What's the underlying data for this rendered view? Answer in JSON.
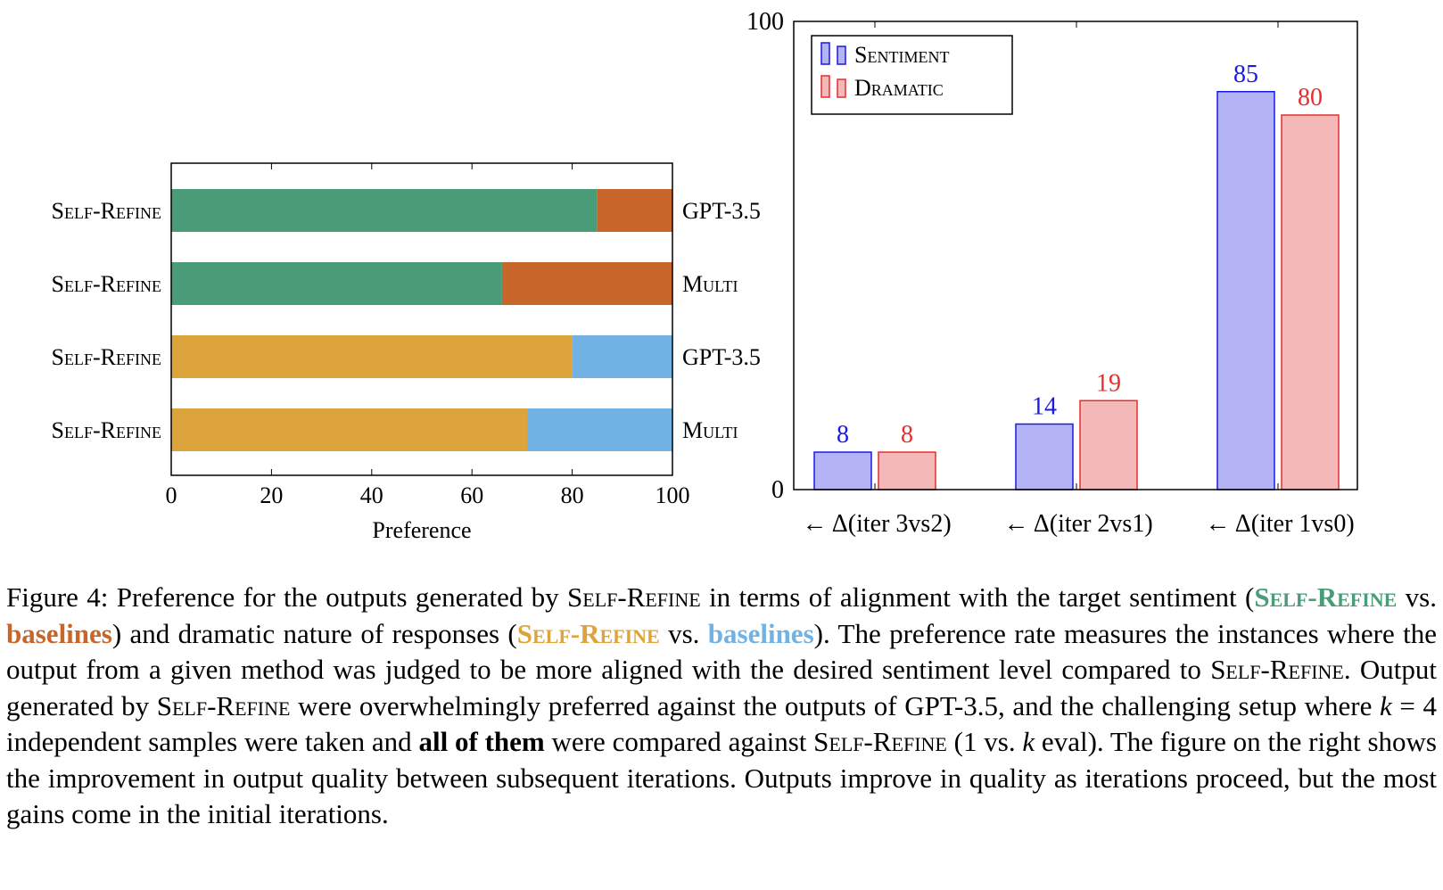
{
  "chart_data": [
    {
      "type": "bar",
      "orientation": "horizontal",
      "stacked": true,
      "xlabel": "Preference",
      "xlim": [
        0,
        100
      ],
      "xticks": [
        "0",
        "20",
        "40",
        "60",
        "80",
        "100"
      ],
      "rows": [
        {
          "left_label": "Self-Refine",
          "right_label": "GPT-3.5",
          "value": 85,
          "color_main": "#4a9c78",
          "color_rest": "#c8652a"
        },
        {
          "left_label": "Self-Refine",
          "right_label": "Multi",
          "value": 66,
          "color_main": "#4a9c78",
          "color_rest": "#c8652a"
        },
        {
          "left_label": "Self-Refine",
          "right_label": "GPT-3.5",
          "value": 80,
          "color_main": "#dca43a",
          "color_rest": "#71b2e4"
        },
        {
          "left_label": "Self-Refine",
          "right_label": "Multi",
          "value": 71,
          "color_main": "#dca43a",
          "color_rest": "#71b2e4"
        }
      ],
      "grid": false
    },
    {
      "type": "bar",
      "orientation": "vertical",
      "ylim": [
        0,
        100
      ],
      "yticks": [
        "0",
        "100"
      ],
      "categories": [
        "← Δ(iter 3vs2)",
        "← Δ(iter 2vs1)",
        "← Δ(iter 1vs0)"
      ],
      "series": [
        {
          "name": "Sentiment",
          "values": [
            8,
            14,
            85
          ],
          "labels": [
            "8",
            "14",
            "85"
          ],
          "fill": "#b3b3f5",
          "stroke": "#1a1ae6",
          "label_color": "#1a1ae6"
        },
        {
          "name": "Dramatic",
          "values": [
            8,
            19,
            80
          ],
          "labels": [
            "8",
            "19",
            "80"
          ],
          "fill": "#f5b8b8",
          "stroke": "#e62e2e",
          "label_color": "#e62e2e"
        }
      ],
      "legend_position": "top-left",
      "grid": false
    }
  ],
  "caption": {
    "lead": "Figure 4:",
    "t1": " Preference for the outputs generated by ",
    "method": "Self-Refine",
    "t2": " in terms of alignment with the target sentiment (",
    "m_green": "Self-Refine",
    "t3": " vs. ",
    "b_orange": "baselines",
    "t4": ") and dramatic nature of responses (",
    "m_gold": "Self-Refine",
    "t5": " vs. ",
    "b_blue": "baselines",
    "t6": "). The preference rate measures the instances where the output from a given method was judged to be more aligned with the desired sentiment level compared to ",
    "m3": "Self-Refine",
    "t7": ". Output generated by ",
    "m4": "Self-Refine",
    "t8": " were overwhelmingly preferred against the outputs of GPT-3.5, and the challenging setup where ",
    "k1": "k",
    "t9": " = 4 independent samples were taken and ",
    "bold1": "all of them",
    "t10": " were compared against ",
    "m5": "Self-Refine",
    "t11": " (1 vs. ",
    "k2": "k",
    "t12": " eval). The figure on the right shows the improvement in output quality between subsequent iterations. Outputs improve in quality as iterations proceed, but the most gains come in the initial iterations."
  }
}
